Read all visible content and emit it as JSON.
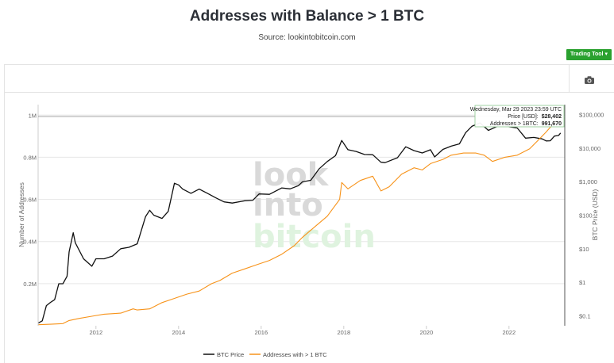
{
  "title": "Addresses with Balance > 1 BTC",
  "subtitle": "Source: lookintobitcoin.com",
  "toolbar": {
    "trading_tool_label": "Trading Tool",
    "trading_tool_caret": "▾",
    "camera_icon": "camera-icon"
  },
  "watermark": {
    "line1": "look",
    "line2": "into",
    "line3": "bitcoin"
  },
  "tooltip": {
    "date": "Wednesday, Mar 29 2023 23:59 UTC",
    "price_label": "Price [USD]:",
    "price_value": "$28,402",
    "addr_label": "Addresses > 1BTC:",
    "addr_value": "991,670"
  },
  "colors": {
    "price": "#111111",
    "addresses": "#f7931a",
    "accent": "#2aa12f",
    "watermark_gray": "#d9d9d9",
    "watermark_green": "#dff3df"
  },
  "chart_data": {
    "type": "line",
    "x_ticks": [
      "2012",
      "2014",
      "2016",
      "2018",
      "2020",
      "2022"
    ],
    "y_left": {
      "label": "Number of Addresses",
      "ticks": [
        "0.2M",
        "0.4M",
        "0.6M",
        "0.8M",
        "1M"
      ],
      "range": [
        0,
        1050000
      ]
    },
    "y_right": {
      "label": "BTC Price (USD)",
      "scale": "log",
      "ticks": [
        "$0.1",
        "$1",
        "$10",
        "$100",
        "$1,000",
        "$10,000",
        "$100,000"
      ],
      "range": [
        0.05,
        200000
      ]
    },
    "x_range": [
      2010.6,
      2023.35
    ],
    "grid": true,
    "legend_position": "bottom",
    "series": [
      {
        "name": "BTC Price",
        "axis": "right",
        "color": "#111111",
        "points": [
          [
            2010.6,
            0.06
          ],
          [
            2010.7,
            0.07
          ],
          [
            2010.8,
            0.2
          ],
          [
            2010.9,
            0.25
          ],
          [
            2011.0,
            0.3
          ],
          [
            2011.1,
            0.9
          ],
          [
            2011.2,
            0.9
          ],
          [
            2011.3,
            1.5
          ],
          [
            2011.35,
            8
          ],
          [
            2011.45,
            30
          ],
          [
            2011.5,
            15
          ],
          [
            2011.7,
            5
          ],
          [
            2011.9,
            3
          ],
          [
            2012.0,
            5
          ],
          [
            2012.2,
            5
          ],
          [
            2012.4,
            6
          ],
          [
            2012.6,
            10
          ],
          [
            2012.8,
            11
          ],
          [
            2013.0,
            14
          ],
          [
            2013.2,
            90
          ],
          [
            2013.3,
            140
          ],
          [
            2013.4,
            100
          ],
          [
            2013.6,
            80
          ],
          [
            2013.75,
            130
          ],
          [
            2013.9,
            900
          ],
          [
            2014.0,
            800
          ],
          [
            2014.1,
            600
          ],
          [
            2014.3,
            450
          ],
          [
            2014.5,
            600
          ],
          [
            2014.7,
            450
          ],
          [
            2014.9,
            330
          ],
          [
            2015.1,
            250
          ],
          [
            2015.3,
            230
          ],
          [
            2015.6,
            270
          ],
          [
            2015.8,
            280
          ],
          [
            2015.95,
            430
          ],
          [
            2016.2,
            420
          ],
          [
            2016.5,
            650
          ],
          [
            2016.7,
            610
          ],
          [
            2016.9,
            760
          ],
          [
            2017.0,
            990
          ],
          [
            2017.2,
            1100
          ],
          [
            2017.4,
            2400
          ],
          [
            2017.6,
            4000
          ],
          [
            2017.8,
            6000
          ],
          [
            2017.95,
            17000
          ],
          [
            2018.1,
            9000
          ],
          [
            2018.3,
            8000
          ],
          [
            2018.5,
            6500
          ],
          [
            2018.7,
            6400
          ],
          [
            2018.9,
            3800
          ],
          [
            2019.0,
            3700
          ],
          [
            2019.3,
            5200
          ],
          [
            2019.5,
            11000
          ],
          [
            2019.7,
            8500
          ],
          [
            2019.9,
            7200
          ],
          [
            2020.1,
            9000
          ],
          [
            2020.2,
            5500
          ],
          [
            2020.4,
            9200
          ],
          [
            2020.6,
            11500
          ],
          [
            2020.8,
            13500
          ],
          [
            2020.95,
            29000
          ],
          [
            2021.1,
            45000
          ],
          [
            2021.3,
            57000
          ],
          [
            2021.5,
            34000
          ],
          [
            2021.7,
            44000
          ],
          [
            2021.85,
            62000
          ],
          [
            2022.0,
            44000
          ],
          [
            2022.2,
            40000
          ],
          [
            2022.4,
            20000
          ],
          [
            2022.6,
            21000
          ],
          [
            2022.8,
            19000
          ],
          [
            2022.9,
            16500
          ],
          [
            2023.0,
            16700
          ],
          [
            2023.1,
            23000
          ],
          [
            2023.2,
            24000
          ],
          [
            2023.25,
            28402
          ]
        ]
      },
      {
        "name": "Addresses with > 1 BTC",
        "axis": "left",
        "color": "#f7931a",
        "points": [
          [
            2010.6,
            5000
          ],
          [
            2010.9,
            7000
          ],
          [
            2011.2,
            10000
          ],
          [
            2011.35,
            25000
          ],
          [
            2011.6,
            35000
          ],
          [
            2011.9,
            45000
          ],
          [
            2012.2,
            55000
          ],
          [
            2012.6,
            60000
          ],
          [
            2012.9,
            80000
          ],
          [
            2013.0,
            75000
          ],
          [
            2013.3,
            80000
          ],
          [
            2013.6,
            110000
          ],
          [
            2013.9,
            130000
          ],
          [
            2014.2,
            150000
          ],
          [
            2014.5,
            165000
          ],
          [
            2014.8,
            200000
          ],
          [
            2015.0,
            215000
          ],
          [
            2015.3,
            250000
          ],
          [
            2015.6,
            270000
          ],
          [
            2015.9,
            290000
          ],
          [
            2016.2,
            310000
          ],
          [
            2016.5,
            340000
          ],
          [
            2016.8,
            380000
          ],
          [
            2017.0,
            420000
          ],
          [
            2017.3,
            470000
          ],
          [
            2017.6,
            520000
          ],
          [
            2017.9,
            600000
          ],
          [
            2017.95,
            680000
          ],
          [
            2018.1,
            650000
          ],
          [
            2018.4,
            690000
          ],
          [
            2018.7,
            710000
          ],
          [
            2018.9,
            640000
          ],
          [
            2019.1,
            660000
          ],
          [
            2019.4,
            720000
          ],
          [
            2019.7,
            750000
          ],
          [
            2019.9,
            740000
          ],
          [
            2020.1,
            770000
          ],
          [
            2020.4,
            790000
          ],
          [
            2020.6,
            810000
          ],
          [
            2020.9,
            820000
          ],
          [
            2021.2,
            820000
          ],
          [
            2021.4,
            810000
          ],
          [
            2021.6,
            780000
          ],
          [
            2021.9,
            800000
          ],
          [
            2022.2,
            810000
          ],
          [
            2022.5,
            840000
          ],
          [
            2022.7,
            880000
          ],
          [
            2022.9,
            920000
          ],
          [
            2023.1,
            965000
          ],
          [
            2023.25,
            991670
          ]
        ]
      }
    ],
    "legend": [
      "BTC Price",
      "Addresses with > 1 BTC"
    ]
  }
}
